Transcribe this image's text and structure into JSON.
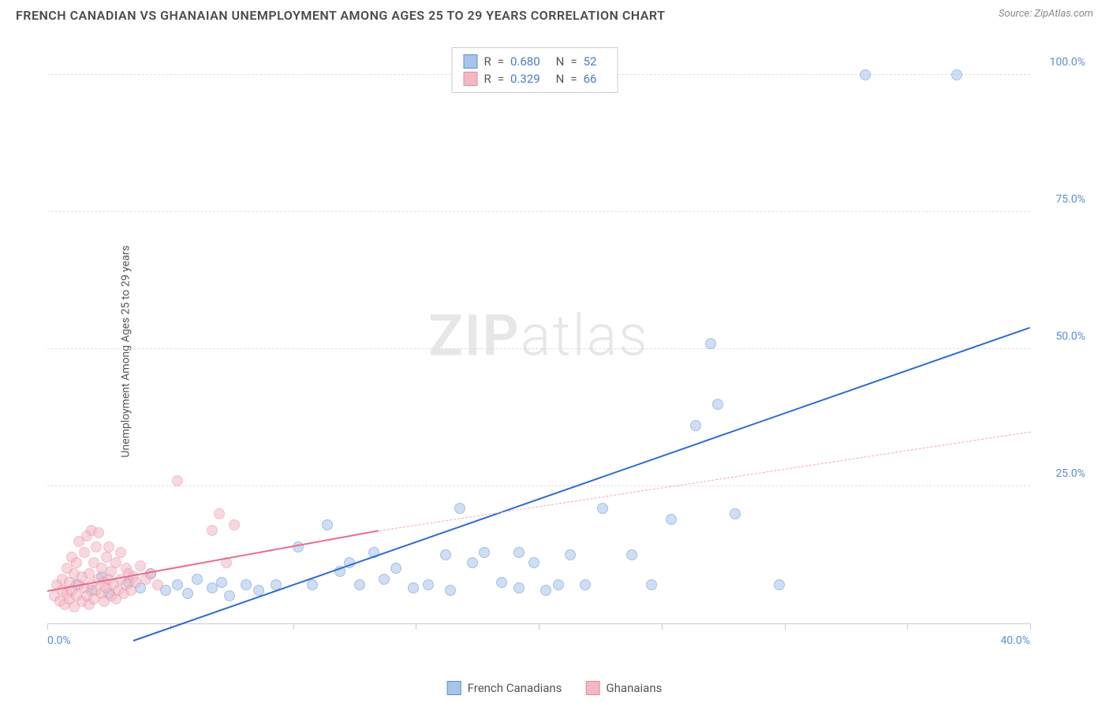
{
  "title": "FRENCH CANADIAN VS GHANAIAN UNEMPLOYMENT AMONG AGES 25 TO 29 YEARS CORRELATION CHART",
  "source": "Source: ZipAtlas.com",
  "watermark": {
    "bold": "ZIP",
    "light": "atlas"
  },
  "y_axis_label": "Unemployment Among Ages 25 to 29 years",
  "chart": {
    "type": "scatter",
    "background_color": "#ffffff",
    "grid_color": "#dddddd",
    "axis_color": "#cccccc",
    "tick_label_color": "#5a8dd6",
    "tick_label_fontsize": 14,
    "xlim": [
      0,
      40
    ],
    "ylim": [
      0,
      105
    ],
    "x_ticks": [
      0,
      5,
      10,
      15,
      20,
      25,
      30,
      35,
      40
    ],
    "x_tick_labels": {
      "0": "0.0%",
      "40": "40.0%"
    },
    "y_ticks": [
      25,
      50,
      75,
      100
    ],
    "y_tick_labels": {
      "25": "25.0%",
      "50": "50.0%",
      "75": "75.0%",
      "100": "100.0%"
    },
    "marker_radius": 7,
    "marker_opacity": 0.55,
    "marker_border_width": 1
  },
  "series": [
    {
      "name": "French Canadians",
      "fill_color": "#a7c4ea",
      "border_color": "#5a8dd6",
      "swatch_fill": "#a7c4ea",
      "swatch_border": "#5a8dd6",
      "R": "0.680",
      "N": "52",
      "trend": {
        "x1": 3.5,
        "y1": -3,
        "x2": 40,
        "y2": 54,
        "color": "#2d6bd1",
        "width": 2.5,
        "dash": "solid"
      },
      "points": [
        [
          1.2,
          7
        ],
        [
          1.8,
          6
        ],
        [
          2.2,
          8.5
        ],
        [
          2.5,
          5.5
        ],
        [
          3.3,
          7.5
        ],
        [
          3.8,
          6.5
        ],
        [
          4.2,
          9
        ],
        [
          4.8,
          6
        ],
        [
          5.3,
          7
        ],
        [
          5.7,
          5.5
        ],
        [
          6.1,
          8
        ],
        [
          6.7,
          6.5
        ],
        [
          7.1,
          7.5
        ],
        [
          7.4,
          5
        ],
        [
          8.1,
          7
        ],
        [
          8.6,
          6
        ],
        [
          9.3,
          7
        ],
        [
          10.2,
          14
        ],
        [
          10.8,
          7
        ],
        [
          11.4,
          18
        ],
        [
          11.9,
          9.5
        ],
        [
          12.3,
          11
        ],
        [
          12.7,
          7
        ],
        [
          13.3,
          13
        ],
        [
          13.7,
          8
        ],
        [
          14.2,
          10
        ],
        [
          14.9,
          6.5
        ],
        [
          15.5,
          7
        ],
        [
          16.2,
          12.5
        ],
        [
          16.4,
          6
        ],
        [
          16.8,
          21
        ],
        [
          17.3,
          11
        ],
        [
          17.8,
          13
        ],
        [
          18.5,
          7.5
        ],
        [
          19.2,
          13
        ],
        [
          19.2,
          6.5
        ],
        [
          19.8,
          11
        ],
        [
          20.3,
          6
        ],
        [
          20.8,
          7
        ],
        [
          21.3,
          12.5
        ],
        [
          21.9,
          7
        ],
        [
          22.6,
          21
        ],
        [
          23.8,
          12.5
        ],
        [
          24.6,
          7
        ],
        [
          25.4,
          19
        ],
        [
          26.4,
          36
        ],
        [
          27.0,
          51
        ],
        [
          27.3,
          40
        ],
        [
          28.0,
          20
        ],
        [
          29.8,
          7
        ],
        [
          33.3,
          100
        ],
        [
          37.0,
          100
        ]
      ]
    },
    {
      "name": "Ghanaians",
      "fill_color": "#f4b8c4",
      "border_color": "#e88ba0",
      "swatch_fill": "#f4b8c4",
      "swatch_border": "#e88ba0",
      "R": "0.329",
      "N": "66",
      "trend_solid": {
        "x1": 0,
        "y1": 6,
        "x2": 13.5,
        "y2": 17,
        "color": "#e86d8a",
        "width": 2,
        "dash": "solid"
      },
      "trend_dash": {
        "x1": 13.5,
        "y1": 17,
        "x2": 40,
        "y2": 35,
        "color": "#f0a8b8",
        "width": 1.5,
        "dash": "dashed"
      },
      "points": [
        [
          0.3,
          5
        ],
        [
          0.4,
          7
        ],
        [
          0.5,
          4
        ],
        [
          0.6,
          8
        ],
        [
          0.6,
          6
        ],
        [
          0.7,
          3.5
        ],
        [
          0.8,
          10
        ],
        [
          0.8,
          5.5
        ],
        [
          0.9,
          7.5
        ],
        [
          0.9,
          4.5
        ],
        [
          1.0,
          12
        ],
        [
          1.0,
          6
        ],
        [
          1.1,
          9
        ],
        [
          1.1,
          3
        ],
        [
          1.2,
          11
        ],
        [
          1.2,
          5
        ],
        [
          1.3,
          7
        ],
        [
          1.3,
          15
        ],
        [
          1.4,
          4
        ],
        [
          1.4,
          8.5
        ],
        [
          1.5,
          6.5
        ],
        [
          1.5,
          13
        ],
        [
          1.6,
          16
        ],
        [
          1.6,
          5
        ],
        [
          1.7,
          9
        ],
        [
          1.7,
          3.5
        ],
        [
          1.8,
          17
        ],
        [
          1.8,
          7
        ],
        [
          1.9,
          11
        ],
        [
          1.9,
          4.5
        ],
        [
          2.0,
          14
        ],
        [
          2.0,
          6
        ],
        [
          2.1,
          8
        ],
        [
          2.1,
          16.5
        ],
        [
          2.2,
          5.5
        ],
        [
          2.2,
          10
        ],
        [
          2.3,
          7.5
        ],
        [
          2.3,
          4
        ],
        [
          2.4,
          12
        ],
        [
          2.4,
          6.5
        ],
        [
          2.5,
          8
        ],
        [
          2.5,
          14
        ],
        [
          2.6,
          5
        ],
        [
          2.6,
          9.5
        ],
        [
          2.7,
          7
        ],
        [
          2.8,
          11
        ],
        [
          2.8,
          4.5
        ],
        [
          2.9,
          6
        ],
        [
          3.0,
          8
        ],
        [
          3.0,
          13
        ],
        [
          3.1,
          5.5
        ],
        [
          3.2,
          10
        ],
        [
          3.2,
          7
        ],
        [
          3.3,
          9
        ],
        [
          3.4,
          6
        ],
        [
          3.5,
          8.5
        ],
        [
          3.6,
          7.5
        ],
        [
          3.8,
          10.5
        ],
        [
          4.0,
          8
        ],
        [
          4.2,
          9
        ],
        [
          4.5,
          7
        ],
        [
          5.3,
          26
        ],
        [
          6.7,
          17
        ],
        [
          7.0,
          20
        ],
        [
          7.3,
          11
        ],
        [
          7.6,
          18
        ]
      ]
    }
  ],
  "stats_legend": {
    "rows": [
      {
        "series_index": 0,
        "R_label": "R",
        "N_label": "N",
        "eq": "="
      },
      {
        "series_index": 1,
        "R_label": "R",
        "N_label": "N",
        "eq": "="
      }
    ]
  },
  "bottom_legend_items": [
    {
      "series_index": 0
    },
    {
      "series_index": 1
    }
  ]
}
